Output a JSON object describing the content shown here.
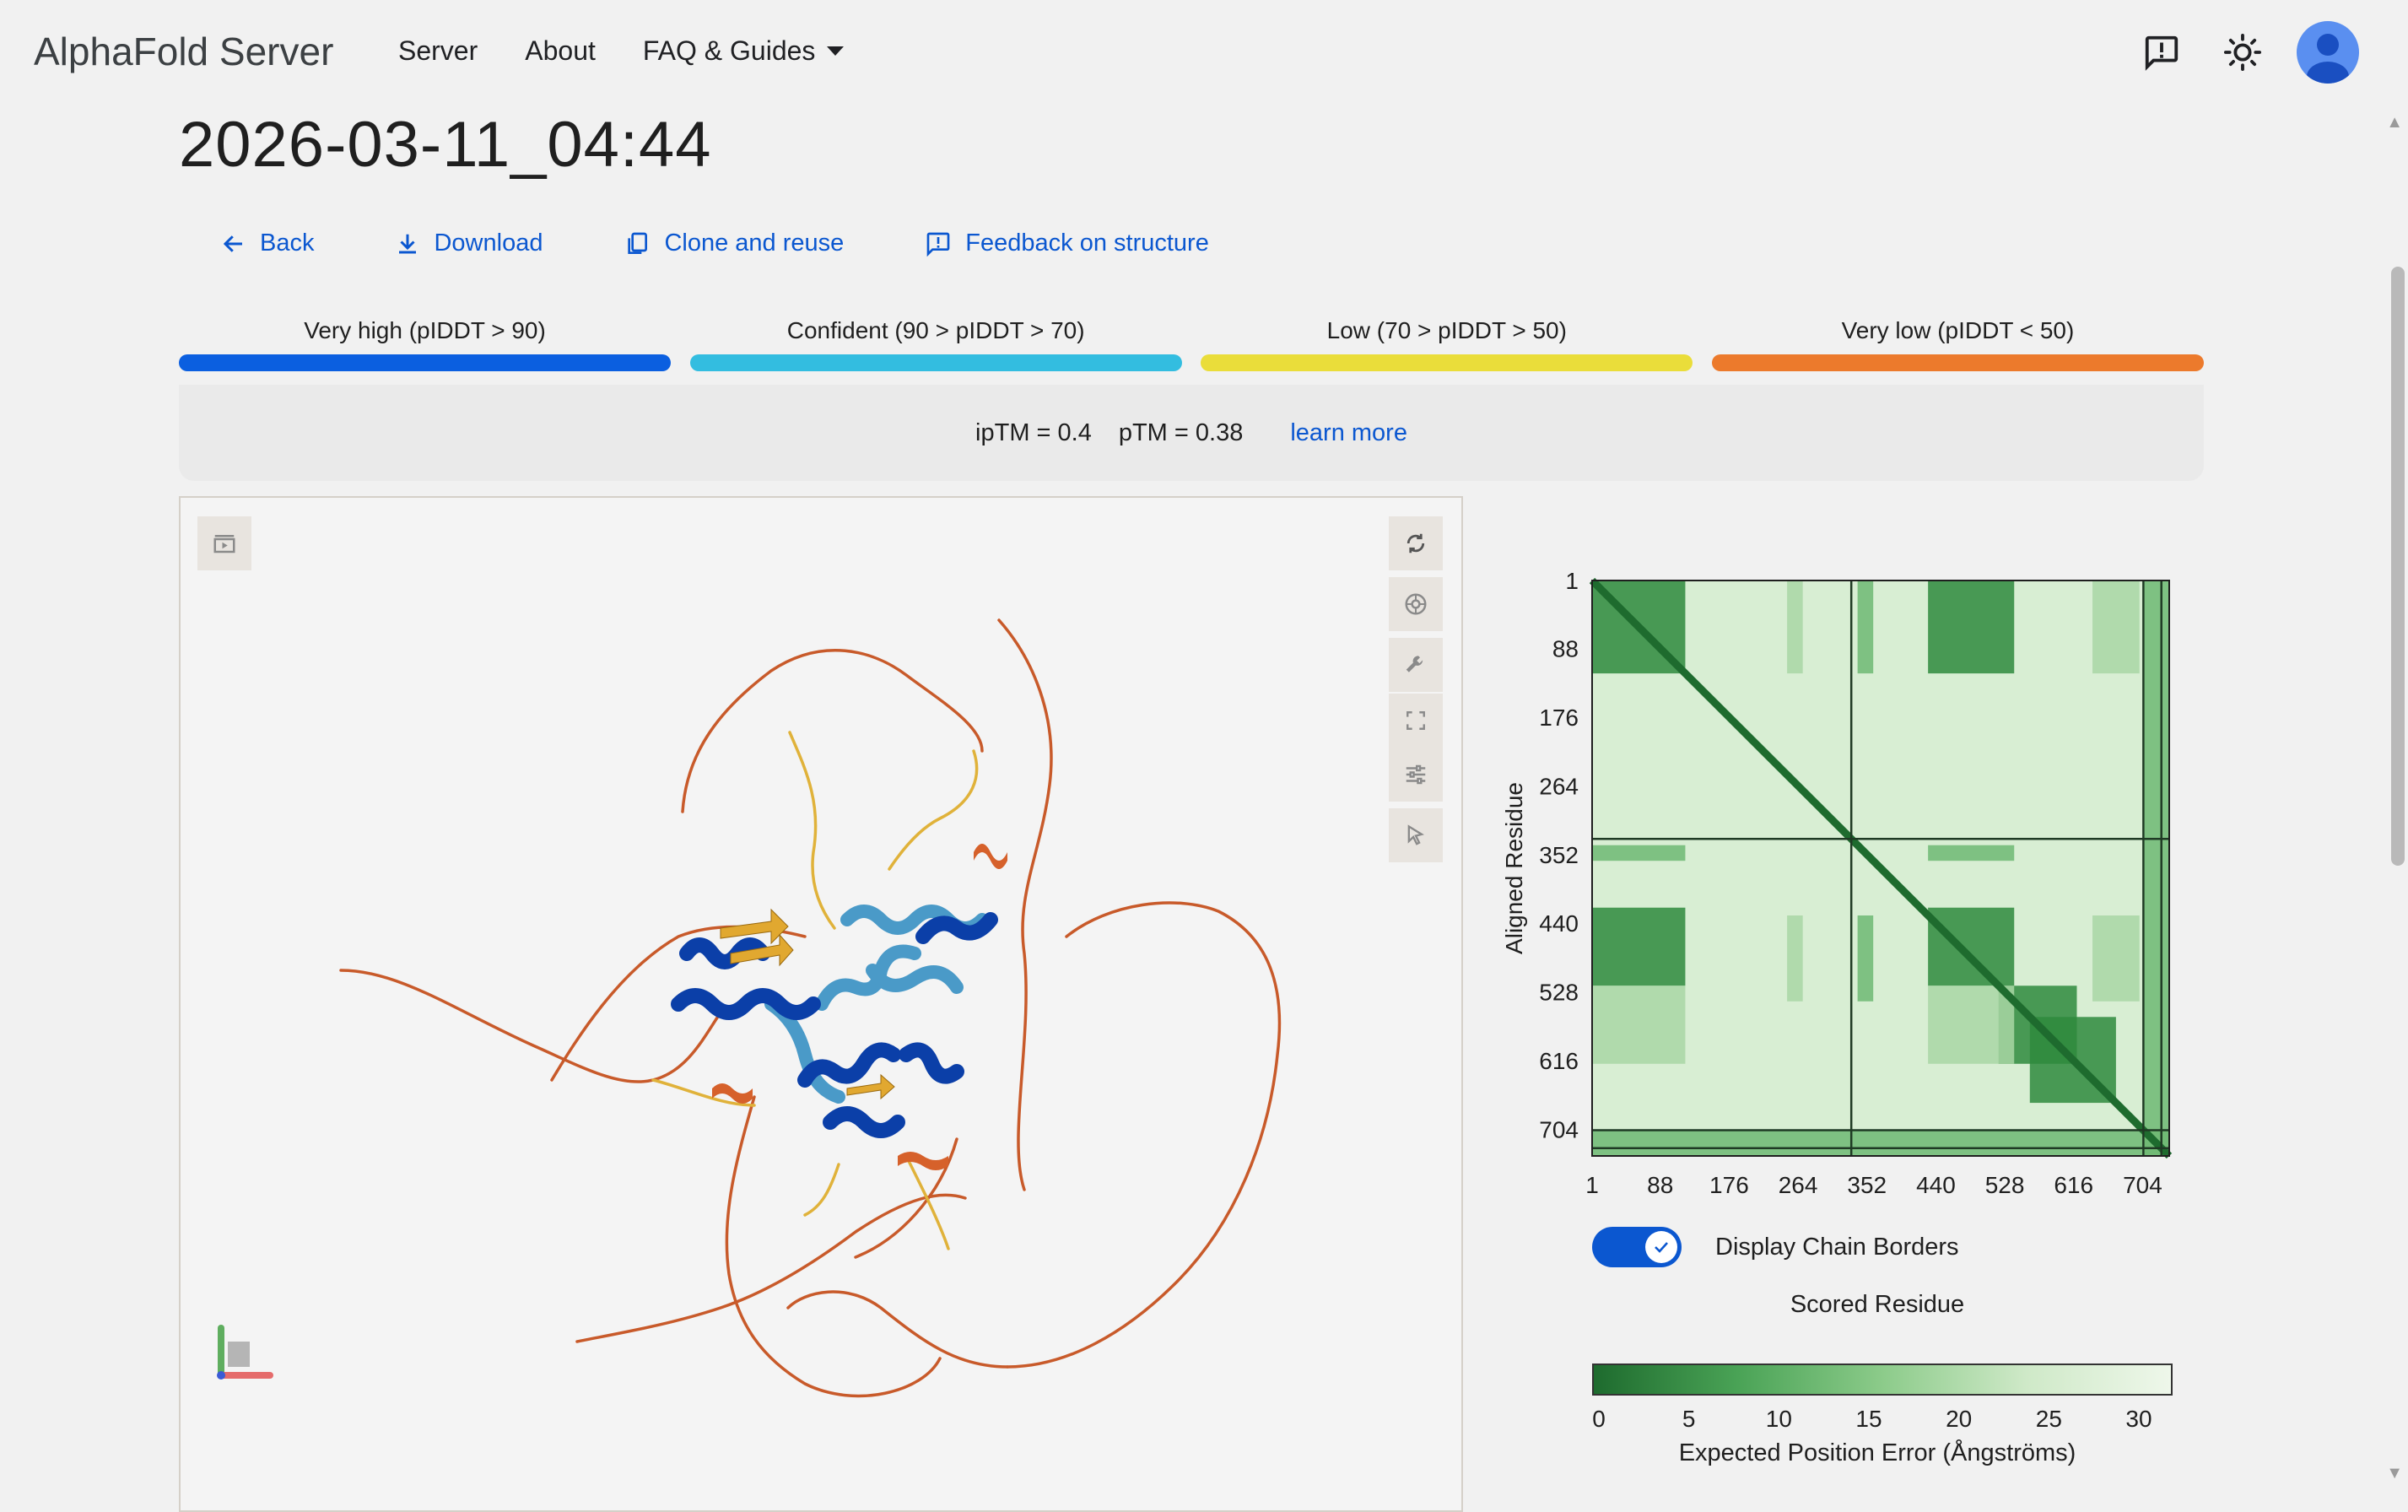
{
  "app": {
    "logo": "AlphaFold Server"
  },
  "nav": {
    "items": [
      "Server",
      "About",
      "FAQ & Guides"
    ]
  },
  "page": {
    "title": "2026-03-11_04:44"
  },
  "actions": {
    "back": "Back",
    "download": "Download",
    "clone": "Clone and reuse",
    "feedback": "Feedback on structure"
  },
  "legend": [
    {
      "label": "Very high (pIDDT > 90)",
      "color": "#0b5fe0"
    },
    {
      "label": "Confident (90 > pIDDT > 70)",
      "color": "#33bde0"
    },
    {
      "label": "Low (70 > pIDDT > 50)",
      "color": "#eadd3a"
    },
    {
      "label": "Very low (pIDDT < 50)",
      "color": "#ec7a2c"
    }
  ],
  "metrics": {
    "iptm": "ipTM = 0.4",
    "ptm": "pTM = 0.38",
    "learn_more": "learn more"
  },
  "viewer": {
    "icons": [
      "animation-icon",
      "rotate-icon",
      "camera-icon",
      "wrench-icon",
      "fullscreen-icon",
      "settings-icon",
      "select-cursor-icon"
    ]
  },
  "pae": {
    "y_axis_label": "Aligned Residue",
    "x_axis_label": "Scored Residue",
    "toggle_label": "Display Chain Borders",
    "toggle_on": true,
    "colorbar_label": "Expected Position Error (Ångströms)",
    "colorbar_ticks": [
      "0",
      "5",
      "10",
      "15",
      "20",
      "25",
      "30"
    ],
    "colorbar_range": [
      0,
      30
    ]
  },
  "chart_data": {
    "type": "heatmap",
    "title": "",
    "xlabel": "Scored Residue",
    "ylabel": "Aligned Residue",
    "x_ticks": [
      "1",
      "88",
      "176",
      "264",
      "352",
      "440",
      "528",
      "616",
      "704"
    ],
    "y_ticks": [
      "1",
      "88",
      "176",
      "264",
      "352",
      "440",
      "528",
      "616",
      "704"
    ],
    "xlim": [
      1,
      738
    ],
    "ylim": [
      1,
      738
    ],
    "chain_borders": [
      332,
      705,
      728
    ],
    "color_scale": {
      "min": 0,
      "max": 30,
      "low_color": "#1e6b2e",
      "high_color": "#eef7ea"
    }
  }
}
